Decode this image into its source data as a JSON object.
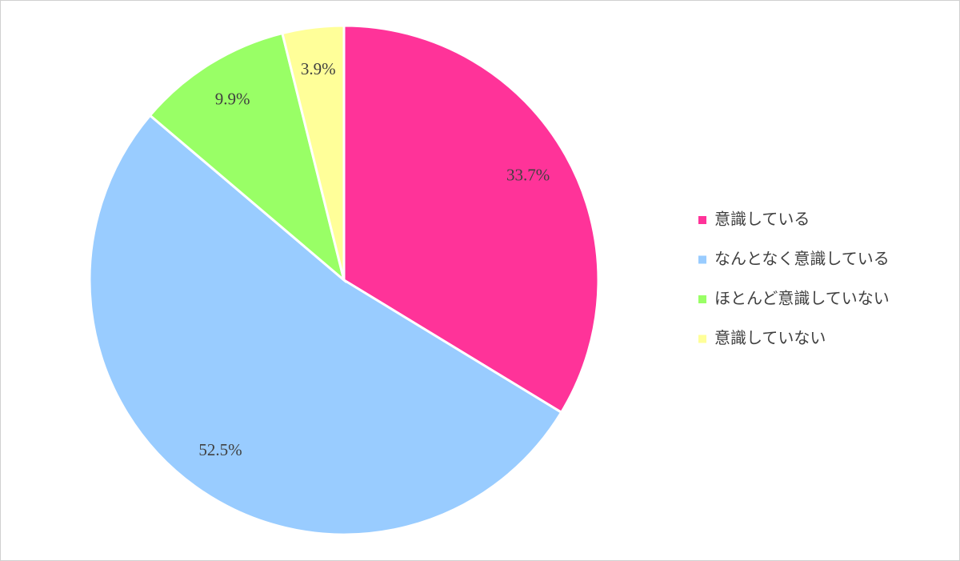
{
  "chart_data": {
    "type": "pie",
    "categories": [
      "意識している",
      "なんとなく意識している",
      "ほとんど意識していない",
      "意識していない"
    ],
    "values": [
      33.7,
      52.5,
      9.9,
      3.9
    ],
    "value_labels": [
      "33.7%",
      "52.5%",
      "9.9%",
      "3.9%"
    ],
    "colors": [
      "#ff3399",
      "#99ccff",
      "#99ff66",
      "#ffff99"
    ],
    "legend": "right"
  }
}
